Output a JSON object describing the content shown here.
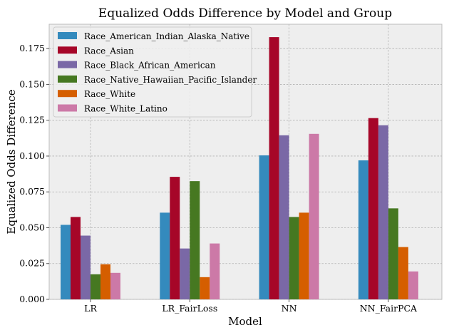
{
  "chart_data": {
    "type": "bar",
    "title": "Equalized Odds Difference by Model and Group",
    "xlabel": "Model",
    "ylabel": "Equalized Odds Difference",
    "categories": [
      "LR",
      "LR_FairLoss",
      "NN",
      "NN_FairPCA"
    ],
    "ylim": [
      0,
      0.192
    ],
    "yticks": [
      "0.000",
      "0.025",
      "0.050",
      "0.075",
      "0.100",
      "0.125",
      "0.150",
      "0.175"
    ],
    "grid": true,
    "legend_position": "top-left",
    "series": [
      {
        "name": "Race_American_Indian_Alaska_Native",
        "color": "#348ABD",
        "values": [
          0.052,
          0.0605,
          0.1005,
          0.097
        ]
      },
      {
        "name": "Race_Asian",
        "color": "#A60628",
        "values": [
          0.0575,
          0.0855,
          0.183,
          0.1265
        ]
      },
      {
        "name": "Race_Black_African_American",
        "color": "#7A68A6",
        "values": [
          0.0445,
          0.0355,
          0.1145,
          0.1215
        ]
      },
      {
        "name": "Race_Native_Hawaiian_Pacific_Islander",
        "color": "#467821",
        "values": [
          0.0175,
          0.0825,
          0.0575,
          0.0635
        ]
      },
      {
        "name": "Race_White",
        "color": "#D55E00",
        "values": [
          0.0245,
          0.0155,
          0.0605,
          0.0365
        ]
      },
      {
        "name": "Race_White_Latino",
        "color": "#CC79A7",
        "values": [
          0.0185,
          0.039,
          0.1155,
          0.0195
        ]
      }
    ]
  }
}
